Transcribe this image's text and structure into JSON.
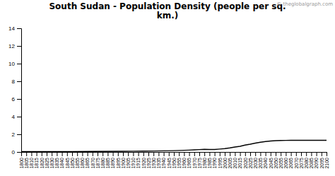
{
  "chart_data": {
    "type": "line",
    "title": "South Sudan - Population Density (people per sq.\nkm.)",
    "annotations": [
      "© theglobalgraph.com"
    ],
    "color": "#000000",
    "grid": false,
    "x": [
      1800,
      1820,
      1850,
      1870,
      1900,
      1910,
      1920,
      1930,
      1940,
      1950,
      1955,
      1960,
      1965,
      1970,
      1975,
      1980,
      1985,
      1990,
      1995,
      2000,
      2005,
      2010,
      2015,
      2020,
      2021,
      2025,
      2030,
      2035,
      2040,
      2045,
      2050,
      2055,
      2060,
      2065,
      2070,
      2075,
      2080,
      2085,
      2090,
      2095,
      2100
    ],
    "values": [
      0.03,
      0.04,
      0.05,
      0.06,
      0.08,
      0.09,
      0.1,
      0.11,
      0.13,
      0.15,
      0.17,
      0.19,
      0.21,
      0.24,
      0.27,
      0.29,
      0.28,
      0.28,
      0.33,
      0.38,
      0.46,
      0.56,
      0.64,
      0.78,
      0.8,
      0.88,
      1.0,
      1.1,
      1.18,
      1.24,
      1.28,
      1.3,
      1.31,
      1.32,
      1.32,
      1.32,
      1.32,
      1.32,
      1.32,
      1.32,
      1.32
    ],
    "xlim": [
      1800,
      2100
    ],
    "xticks": [
      1800,
      1805,
      1810,
      1815,
      1820,
      1825,
      1830,
      1835,
      1840,
      1845,
      1850,
      1855,
      1860,
      1865,
      1870,
      1875,
      1880,
      1885,
      1890,
      1895,
      1900,
      1905,
      1910,
      1915,
      1920,
      1925,
      1930,
      1935,
      1940,
      1945,
      1950,
      1955,
      1960,
      1965,
      1970,
      1975,
      1980,
      1985,
      1990,
      1995,
      2000,
      2005,
      2010,
      2015,
      2020,
      2025,
      2030,
      2035,
      2040,
      2045,
      2050,
      2055,
      2060,
      2065,
      2070,
      2075,
      2080,
      2085,
      2090,
      2095,
      2100
    ],
    "ylim": [
      0,
      14
    ],
    "yticks": [
      0,
      2,
      4,
      6,
      8,
      10,
      12,
      14
    ]
  }
}
